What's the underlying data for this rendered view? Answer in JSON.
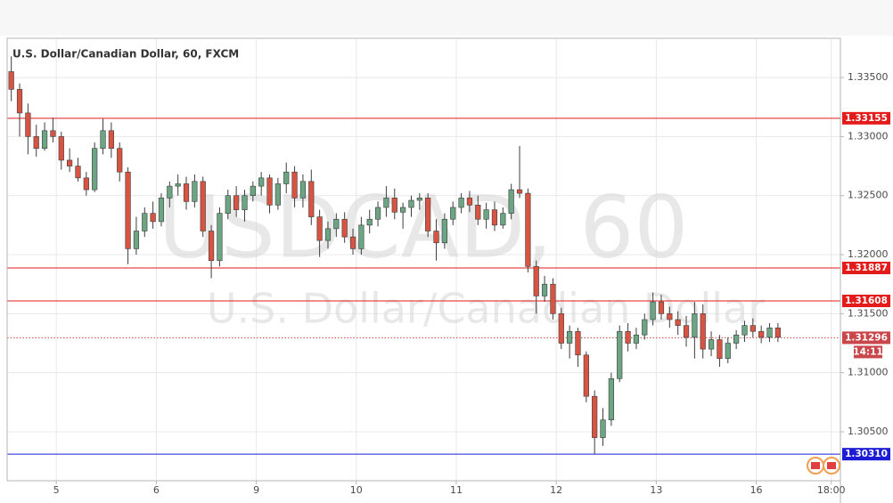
{
  "chart_data": {
    "type": "candlestick",
    "title": "U.S. Dollar/Canadian Dollar, 60, FXCM",
    "watermark": "USDCAD, 60",
    "watermark_subtitle": "U.S. Dollar/Canadian Dollar",
    "countdown": "14:11",
    "up_color": "#6ba583",
    "down_color": "#d75442",
    "wick_color": "#3d3d3d",
    "grid": true,
    "xlim": [
      0,
      100
    ],
    "xticks": [
      {
        "value": 5.9,
        "label": "5"
      },
      {
        "value": 17.9,
        "label": "6"
      },
      {
        "value": 29.9,
        "label": "9"
      },
      {
        "value": 41.9,
        "label": "10"
      },
      {
        "value": 53.9,
        "label": "11"
      },
      {
        "value": 65.9,
        "label": "12"
      },
      {
        "value": 77.9,
        "label": "13"
      },
      {
        "value": 89.9,
        "label": "16"
      },
      {
        "value": 98.9,
        "label": "18:00"
      }
    ],
    "ylim": [
      1.30085,
      1.33825
    ],
    "yticks": [
      {
        "value": 1.335,
        "label": "1.33500"
      },
      {
        "value": 1.33,
        "label": "1.33000"
      },
      {
        "value": 1.325,
        "label": "1.32500"
      },
      {
        "value": 1.32,
        "label": "1.32000"
      },
      {
        "value": 1.315,
        "label": "1.31500"
      },
      {
        "value": 1.31,
        "label": "1.31000"
      },
      {
        "value": 1.305,
        "label": "1.30500"
      }
    ],
    "levels": [
      {
        "value": 1.33155,
        "label": "1.33155",
        "color": "#e31b1b",
        "style": "solid"
      },
      {
        "value": 1.31887,
        "label": "1.31887",
        "color": "#e31b1b",
        "style": "solid"
      },
      {
        "value": 1.31608,
        "label": "1.31608",
        "color": "#e31b1b",
        "style": "solid"
      },
      {
        "value": 1.31296,
        "label": "1.31296",
        "color": "#c9474a",
        "style": "dotted"
      },
      {
        "value": 1.3031,
        "label": "1.30310",
        "color": "#1c1cd6",
        "style": "solid"
      }
    ],
    "open": [
      1.3355,
      1.334,
      1.332,
      1.33,
      1.329,
      1.3305,
      1.33,
      1.328,
      1.3275,
      1.3265,
      1.3255,
      1.329,
      1.3305,
      1.329,
      1.327,
      1.3205,
      1.322,
      1.3235,
      1.3228,
      1.3248,
      1.3258,
      1.326,
      1.3245,
      1.3262,
      1.322,
      1.3195,
      1.3235,
      1.325,
      1.3238,
      1.325,
      1.3258,
      1.3265,
      1.3242,
      1.326,
      1.327,
      1.3248,
      1.3262,
      1.3232,
      1.3212,
      1.3222,
      1.323,
      1.3215,
      1.3205,
      1.3225,
      1.323,
      1.324,
      1.3248,
      1.3236,
      1.324,
      1.3246,
      1.3248,
      1.322,
      1.321,
      1.323,
      1.324,
      1.3248,
      1.3242,
      1.323,
      1.3238,
      1.3225,
      1.3235,
      1.3255,
      1.3252,
      1.319,
      1.3165,
      1.3175,
      1.315,
      1.3125,
      1.3135,
      1.3115,
      1.308,
      1.3045,
      1.306,
      1.3095,
      1.3135,
      1.3125,
      1.3132,
      1.3145,
      1.316,
      1.315,
      1.3145,
      1.314,
      1.313,
      1.315,
      1.312,
      1.3128,
      1.3112,
      1.3125,
      1.3132,
      1.314,
      1.3135,
      1.313,
      1.3138
    ],
    "high": [
      1.3368,
      1.3345,
      1.3328,
      1.331,
      1.3312,
      1.3316,
      1.3304,
      1.329,
      1.3282,
      1.327,
      1.3295,
      1.3315,
      1.3312,
      1.3295,
      1.3274,
      1.3232,
      1.324,
      1.3245,
      1.3252,
      1.3262,
      1.3268,
      1.3266,
      1.3268,
      1.3266,
      1.3225,
      1.324,
      1.3255,
      1.3258,
      1.3255,
      1.3262,
      1.327,
      1.3268,
      1.3265,
      1.3278,
      1.3275,
      1.3268,
      1.3272,
      1.3238,
      1.3228,
      1.3235,
      1.3236,
      1.3222,
      1.3232,
      1.3238,
      1.3245,
      1.3258,
      1.3256,
      1.3244,
      1.325,
      1.3252,
      1.3252,
      1.323,
      1.3235,
      1.3245,
      1.3252,
      1.3254,
      1.325,
      1.3244,
      1.3245,
      1.324,
      1.326,
      1.3292,
      1.3256,
      1.3195,
      1.3182,
      1.318,
      1.3155,
      1.314,
      1.3138,
      1.3118,
      1.3085,
      1.307,
      1.31,
      1.314,
      1.3142,
      1.3138,
      1.315,
      1.3168,
      1.3166,
      1.3156,
      1.3152,
      1.3148,
      1.316,
      1.3158,
      1.3135,
      1.3132,
      1.313,
      1.3136,
      1.3144,
      1.3146,
      1.314,
      1.3142,
      1.3142
    ],
    "low": [
      1.333,
      1.33,
      1.3285,
      1.3283,
      1.3288,
      1.3295,
      1.3272,
      1.327,
      1.3262,
      1.325,
      1.3253,
      1.3285,
      1.3282,
      1.3262,
      1.3192,
      1.32,
      1.3215,
      1.3222,
      1.3224,
      1.324,
      1.325,
      1.3238,
      1.324,
      1.3215,
      1.318,
      1.319,
      1.323,
      1.3232,
      1.3228,
      1.3245,
      1.325,
      1.3235,
      1.3238,
      1.3252,
      1.324,
      1.324,
      1.3225,
      1.3198,
      1.3205,
      1.3215,
      1.321,
      1.32,
      1.32,
      1.3218,
      1.3224,
      1.3232,
      1.323,
      1.3222,
      1.3232,
      1.3238,
      1.3215,
      1.3195,
      1.3205,
      1.3225,
      1.3235,
      1.3236,
      1.3225,
      1.3222,
      1.322,
      1.3222,
      1.323,
      1.3248,
      1.3185,
      1.315,
      1.316,
      1.3145,
      1.312,
      1.3112,
      1.3105,
      1.3075,
      1.3031,
      1.3038,
      1.3055,
      1.3092,
      1.3118,
      1.312,
      1.3128,
      1.314,
      1.3145,
      1.3138,
      1.3132,
      1.3122,
      1.3112,
      1.3112,
      1.3114,
      1.3105,
      1.3108,
      1.312,
      1.3126,
      1.313,
      1.3125,
      1.3126,
      1.3126
    ],
    "close": [
      1.334,
      1.332,
      1.33,
      1.329,
      1.3305,
      1.33,
      1.328,
      1.3275,
      1.3265,
      1.3255,
      1.329,
      1.3305,
      1.329,
      1.327,
      1.3205,
      1.322,
      1.3235,
      1.3228,
      1.3248,
      1.3258,
      1.326,
      1.3245,
      1.3262,
      1.322,
      1.3195,
      1.3235,
      1.325,
      1.3238,
      1.325,
      1.3258,
      1.3265,
      1.3242,
      1.326,
      1.327,
      1.3248,
      1.3262,
      1.3232,
      1.3212,
      1.3222,
      1.323,
      1.3215,
      1.3205,
      1.3225,
      1.323,
      1.324,
      1.3248,
      1.3236,
      1.324,
      1.3246,
      1.3248,
      1.322,
      1.321,
      1.323,
      1.324,
      1.3248,
      1.3242,
      1.323,
      1.3238,
      1.3225,
      1.3235,
      1.3255,
      1.3252,
      1.319,
      1.3165,
      1.3175,
      1.315,
      1.3125,
      1.3135,
      1.3115,
      1.308,
      1.3045,
      1.306,
      1.3095,
      1.3135,
      1.3125,
      1.3132,
      1.3145,
      1.316,
      1.315,
      1.3145,
      1.314,
      1.313,
      1.315,
      1.312,
      1.3128,
      1.3112,
      1.3125,
      1.3132,
      1.314,
      1.3135,
      1.313,
      1.3138,
      1.313
    ]
  }
}
